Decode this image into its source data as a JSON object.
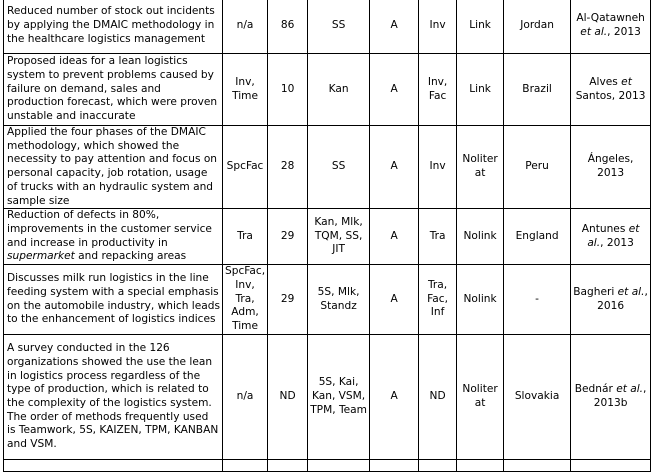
{
  "table": {
    "rows": [
      {
        "cells": [
          [
            {
              "t": "Reduced number of stock out incidents by applying the DMAIC methodology in the healthcare logistics management"
            }
          ],
          [
            {
              "t": "n/a"
            }
          ],
          [
            {
              "t": "86"
            }
          ],
          [
            {
              "t": "SS"
            }
          ],
          [
            {
              "t": "A"
            }
          ],
          [
            {
              "t": "Inv"
            }
          ],
          [
            {
              "t": "Link"
            }
          ],
          [
            {
              "t": "Jordan"
            }
          ],
          [
            {
              "t": "Al-Qatawneh "
            },
            {
              "t": "et al.",
              "i": true
            },
            {
              "t": ", 2013"
            }
          ]
        ]
      },
      {
        "cells": [
          [
            {
              "t": "Proposed ideas for a lean logistics system to prevent problems caused by failure on demand, sales and production forecast, which were proven unstable and inaccurate"
            }
          ],
          [
            {
              "t": "Inv, Time"
            }
          ],
          [
            {
              "t": "10"
            }
          ],
          [
            {
              "t": "Kan"
            }
          ],
          [
            {
              "t": "A"
            }
          ],
          [
            {
              "t": "Inv, Fac"
            }
          ],
          [
            {
              "t": "Link"
            }
          ],
          [
            {
              "t": "Brazil"
            }
          ],
          [
            {
              "t": "Alves "
            },
            {
              "t": "et",
              "i": true
            },
            {
              "t": " Santos, 2013"
            }
          ]
        ]
      },
      {
        "cells": [
          [
            {
              "t": "Applied the four phases of the DMAIC methodology, which showed the necessity to pay attention and focus on personal capacity, job rotation, usage of trucks with an hydraulic system and sample size"
            }
          ],
          [
            {
              "t": "SpcFac"
            }
          ],
          [
            {
              "t": "28"
            }
          ],
          [
            {
              "t": "SS"
            }
          ],
          [
            {
              "t": "A"
            }
          ],
          [
            {
              "t": "Inv"
            }
          ],
          [
            {
              "t": "Noliter at"
            }
          ],
          [
            {
              "t": "Peru"
            }
          ],
          [
            {
              "t": "Ángeles, 2013"
            }
          ]
        ]
      },
      {
        "cells": [
          [
            {
              "t": "Reduction of defects in 80%, improvements in the customer service and increase in productivity in "
            },
            {
              "t": "supermarket",
              "i": true
            },
            {
              "t": " and repacking areas"
            }
          ],
          [
            {
              "t": "Tra"
            }
          ],
          [
            {
              "t": "29"
            }
          ],
          [
            {
              "t": "Kan, Mlk, TQM, SS, JIT"
            }
          ],
          [
            {
              "t": "A"
            }
          ],
          [
            {
              "t": "Tra"
            }
          ],
          [
            {
              "t": "Nolink"
            }
          ],
          [
            {
              "t": "England"
            }
          ],
          [
            {
              "t": "Antunes "
            },
            {
              "t": "et al.",
              "i": true
            },
            {
              "t": ", 2013"
            }
          ]
        ]
      },
      {
        "cells": [
          [
            {
              "t": "Discusses milk run logistics in the line feeding system with a special emphasis on the automobile industry, which leads to the enhancement of logistics indices"
            }
          ],
          [
            {
              "t": "SpcFac, Inv, Tra, Adm, Time"
            }
          ],
          [
            {
              "t": "29"
            }
          ],
          [
            {
              "t": "5S, Mlk, Standz"
            }
          ],
          [
            {
              "t": "A"
            }
          ],
          [
            {
              "t": "Tra, Fac, Inf"
            }
          ],
          [
            {
              "t": "Nolink"
            }
          ],
          [
            {
              "t": "-"
            }
          ],
          [
            {
              "t": "Bagheri "
            },
            {
              "t": "et al.",
              "i": true
            },
            {
              "t": ", 2016"
            }
          ]
        ]
      },
      {
        "cells": [
          [
            {
              "t": "A survey conducted in the 126 organizations showed the use the lean in logistics process regardless of the type of production, which is related to the complexity of the logistics system. The order of methods frequently used is Teamwork, 5S, KAIZEN, TPM, KANBAN and VSM."
            }
          ],
          [
            {
              "t": "n/a"
            }
          ],
          [
            {
              "t": "ND"
            }
          ],
          [
            {
              "t": "5S, Kai, Kan, VSM, TPM, Team"
            }
          ],
          [
            {
              "t": "A"
            }
          ],
          [
            {
              "t": "ND"
            }
          ],
          [
            {
              "t": "Noliter at"
            }
          ],
          [
            {
              "t": "Slovakia"
            }
          ],
          [
            {
              "t": "Bednár "
            },
            {
              "t": "et al.",
              "i": true
            },
            {
              "t": ", 2013b"
            }
          ]
        ]
      },
      {
        "cells": [
          [],
          [],
          [],
          [],
          [],
          [],
          [],
          [],
          []
        ]
      }
    ]
  }
}
